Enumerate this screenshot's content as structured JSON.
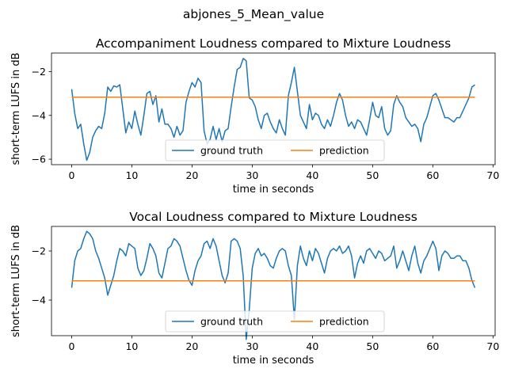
{
  "suptitle": "abjones_5_Mean_value",
  "colors": {
    "ground_truth": "#1f77b4",
    "prediction": "#ff7f0e"
  },
  "chart_data": [
    {
      "type": "line",
      "title": "Accompaniment Loudness compared to Mixture Loudness",
      "xlabel": "time in seconds",
      "ylabel": "short-term LUFS in dB",
      "xlim": [
        -3.35,
        70.35
      ],
      "ylim": [
        -6.25,
        -1.15
      ],
      "xticks": [
        0,
        10,
        20,
        30,
        40,
        50,
        60,
        70
      ],
      "yticks": [
        -6,
        -4,
        -2
      ],
      "legend_position": "lower center",
      "series": [
        {
          "name": "ground truth",
          "x": [
            0,
            0.5,
            1,
            1.5,
            2,
            2.5,
            3,
            3.5,
            4,
            4.5,
            5,
            5.5,
            6,
            6.5,
            7,
            7.5,
            8,
            8.5,
            9,
            9.5,
            10,
            10.5,
            11,
            11.5,
            12,
            12.5,
            13,
            13.5,
            14,
            14.5,
            15,
            15.5,
            16,
            16.5,
            17,
            17.5,
            18,
            18.5,
            19,
            19.5,
            20,
            20.5,
            21,
            21.5,
            22,
            22.5,
            23,
            23.5,
            24,
            24.5,
            25,
            25.5,
            26,
            26.5,
            27,
            27.5,
            28,
            28.5,
            29,
            29.5,
            30,
            30.5,
            31,
            31.5,
            32,
            32.5,
            33,
            33.5,
            34,
            34.5,
            35,
            35.5,
            36,
            36.5,
            37,
            37.5,
            38,
            38.5,
            39,
            39.5,
            40,
            40.5,
            41,
            41.5,
            42,
            42.5,
            43,
            43.5,
            44,
            44.5,
            45,
            45.5,
            46,
            46.5,
            47,
            47.5,
            48,
            48.5,
            49,
            49.5,
            50,
            50.5,
            51,
            51.5,
            52,
            52.5,
            53,
            53.5,
            54,
            54.5,
            55,
            55.5,
            56,
            56.5,
            57,
            57.5,
            58,
            58.5,
            59,
            59.5,
            60,
            60.5,
            61,
            61.5,
            62,
            62.5,
            63,
            63.5,
            64,
            64.5,
            65,
            65.5,
            66,
            66.5,
            67
          ],
          "y": [
            -2.8,
            -3.9,
            -4.6,
            -4.4,
            -5.3,
            -6.05,
            -5.7,
            -5.0,
            -4.7,
            -4.5,
            -4.6,
            -3.9,
            -2.7,
            -2.9,
            -2.65,
            -2.7,
            -2.6,
            -3.7,
            -4.8,
            -4.3,
            -4.6,
            -3.8,
            -4.4,
            -4.9,
            -4.0,
            -3.0,
            -2.9,
            -3.5,
            -3.1,
            -4.3,
            -3.7,
            -4.4,
            -4.4,
            -4.6,
            -5.0,
            -4.5,
            -4.9,
            -4.7,
            -3.4,
            -2.9,
            -2.5,
            -2.7,
            -2.3,
            -2.5,
            -4.7,
            -5.3,
            -5.1,
            -4.5,
            -5.1,
            -4.6,
            -5.2,
            -4.7,
            -4.6,
            -3.6,
            -2.7,
            -1.9,
            -1.8,
            -1.4,
            -1.5,
            -3.2,
            -3.3,
            -3.6,
            -4.2,
            -4.6,
            -4.0,
            -3.9,
            -4.3,
            -4.6,
            -4.8,
            -4.2,
            -4.6,
            -4.9,
            -3.1,
            -2.5,
            -1.8,
            -2.9,
            -4.0,
            -4.3,
            -4.6,
            -3.5,
            -4.2,
            -3.9,
            -4.0,
            -4.4,
            -4.6,
            -4.2,
            -4.5,
            -4.0,
            -3.4,
            -3.0,
            -3.3,
            -4.0,
            -4.5,
            -4.3,
            -4.6,
            -4.2,
            -4.3,
            -4.6,
            -4.9,
            -4.2,
            -3.4,
            -4.0,
            -4.1,
            -3.6,
            -4.6,
            -4.9,
            -4.7,
            -3.5,
            -3.1,
            -3.4,
            -3.6,
            -4.1,
            -4.3,
            -4.5,
            -4.4,
            -4.6,
            -5.2,
            -4.4,
            -4.1,
            -3.6,
            -3.1,
            -3.0,
            -3.3,
            -3.7,
            -4.1,
            -4.1,
            -4.2,
            -4.3,
            -4.1,
            -4.1,
            -3.8,
            -3.5,
            -3.2,
            -2.7,
            -2.6
          ]
        },
        {
          "name": "prediction",
          "x": [
            0,
            67
          ],
          "y": [
            -3.17,
            -3.17
          ]
        }
      ]
    },
    {
      "type": "line",
      "title": "Vocal Loudness compared to Mixture Loudness",
      "xlabel": "time in seconds",
      "ylabel": "short-term LUFS in dB",
      "xlim": [
        -3.35,
        70.35
      ],
      "ylim": [
        -5.45,
        -1.0
      ],
      "xticks": [
        0,
        10,
        20,
        30,
        40,
        50,
        60,
        70
      ],
      "yticks": [
        -4,
        -2
      ],
      "legend_position": "lower center",
      "series": [
        {
          "name": "ground truth",
          "x": [
            0,
            0.5,
            1,
            1.5,
            2,
            2.5,
            3,
            3.5,
            4,
            4.5,
            5,
            5.5,
            6,
            6.5,
            7,
            7.5,
            8,
            8.5,
            9,
            9.5,
            10,
            10.5,
            11,
            11.5,
            12,
            12.5,
            13,
            13.5,
            14,
            14.5,
            15,
            15.5,
            16,
            16.5,
            17,
            17.5,
            18,
            18.5,
            19,
            19.5,
            20,
            20.5,
            21,
            21.5,
            22,
            22.5,
            23,
            23.5,
            24,
            24.5,
            25,
            25.5,
            26,
            26.5,
            27,
            27.5,
            28,
            28.5,
            29,
            29.5,
            30,
            30.5,
            31,
            31.5,
            32,
            32.5,
            33,
            33.5,
            34,
            34.5,
            35,
            35.5,
            36,
            36.5,
            37,
            37.5,
            38,
            38.5,
            39,
            39.5,
            40,
            40.5,
            41,
            41.5,
            42,
            42.5,
            43,
            43.5,
            44,
            44.5,
            45,
            45.5,
            46,
            46.5,
            47,
            47.5,
            48,
            48.5,
            49,
            49.5,
            50,
            50.5,
            51,
            51.5,
            52,
            52.5,
            53,
            53.5,
            54,
            54.5,
            55,
            55.5,
            56,
            56.5,
            57,
            57.5,
            58,
            58.5,
            59,
            59.5,
            60,
            60.5,
            61,
            61.5,
            62,
            62.5,
            63,
            63.5,
            64,
            64.5,
            65,
            65.5,
            66,
            66.5,
            67
          ],
          "y": [
            -3.5,
            -2.4,
            -2.0,
            -1.9,
            -1.5,
            -1.2,
            -1.3,
            -1.5,
            -2.0,
            -2.3,
            -2.7,
            -3.1,
            -3.8,
            -3.4,
            -3.0,
            -2.4,
            -1.9,
            -2.0,
            -2.2,
            -1.7,
            -1.8,
            -1.9,
            -2.7,
            -3.0,
            -2.8,
            -2.3,
            -1.7,
            -1.9,
            -2.2,
            -2.9,
            -3.1,
            -2.5,
            -1.9,
            -1.8,
            -1.5,
            -1.6,
            -1.8,
            -2.3,
            -2.8,
            -3.2,
            -3.4,
            -2.8,
            -2.4,
            -2.2,
            -1.7,
            -1.6,
            -1.9,
            -1.5,
            -1.8,
            -2.4,
            -3.0,
            -3.3,
            -2.9,
            -1.6,
            -1.5,
            -1.6,
            -1.9,
            -3.0,
            -5.6,
            -4.4,
            -2.7,
            -2.1,
            -1.9,
            -2.2,
            -2.1,
            -2.3,
            -2.6,
            -2.7,
            -2.3,
            -2.0,
            -1.9,
            -2.0,
            -2.6,
            -3.0,
            -4.8,
            -2.6,
            -1.8,
            -2.3,
            -2.6,
            -2.0,
            -2.4,
            -1.9,
            -2.1,
            -2.5,
            -2.9,
            -2.3,
            -2.0,
            -1.9,
            -2.0,
            -1.8,
            -2.1,
            -2.0,
            -1.8,
            -2.2,
            -3.1,
            -2.5,
            -2.2,
            -2.5,
            -2.0,
            -1.9,
            -2.1,
            -2.3,
            -2.0,
            -2.1,
            -2.4,
            -2.3,
            -2.2,
            -1.8,
            -2.7,
            -2.4,
            -2.0,
            -2.4,
            -2.8,
            -2.2,
            -1.8,
            -2.5,
            -2.9,
            -2.4,
            -2.2,
            -1.9,
            -1.6,
            -1.9,
            -2.8,
            -2.2,
            -2.0,
            -2.1,
            -2.3,
            -2.3,
            -2.2,
            -2.2,
            -2.4,
            -2.4,
            -2.7,
            -3.2,
            -3.5
          ]
        },
        {
          "name": "prediction",
          "x": [
            0,
            67
          ],
          "y": [
            -3.22,
            -3.22
          ]
        }
      ]
    }
  ]
}
